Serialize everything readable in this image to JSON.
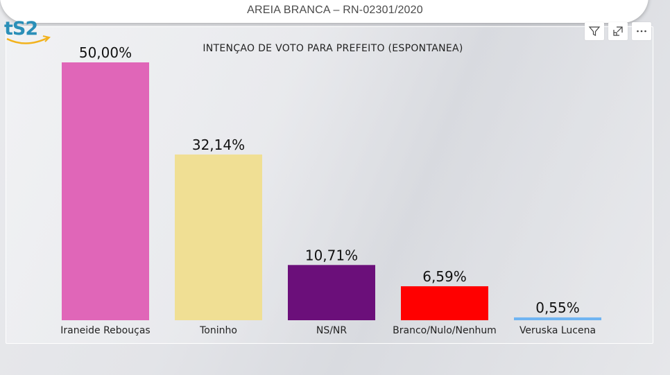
{
  "header": {
    "title": "AREIA BRANCA – RN-02301/2020"
  },
  "logo": {
    "text": "tS2"
  },
  "toolbar": {
    "filter_icon": "filter-icon",
    "focus_icon": "focus-mode-icon",
    "more_icon": "more-options-icon"
  },
  "chart_data": {
    "type": "bar",
    "title": "INTENÇAO DE VOTO PARA PREFEITO (ESPONTANEA)",
    "categories": [
      "Iraneide Rebouças",
      "Toninho",
      "NS/NR",
      "Branco/Nulo/Nenhum",
      "Veruska Lucena"
    ],
    "values": [
      50.0,
      32.14,
      10.71,
      6.59,
      0.55
    ],
    "value_labels": [
      "50,00%",
      "32,14%",
      "10,71%",
      "6,59%",
      "0,55%"
    ],
    "colors": [
      "#e066b8",
      "#f0df94",
      "#6b0f7a",
      "#ff0000",
      "#6fb4f2"
    ],
    "ylim": [
      0,
      50
    ],
    "grid": false,
    "legend": "none"
  }
}
